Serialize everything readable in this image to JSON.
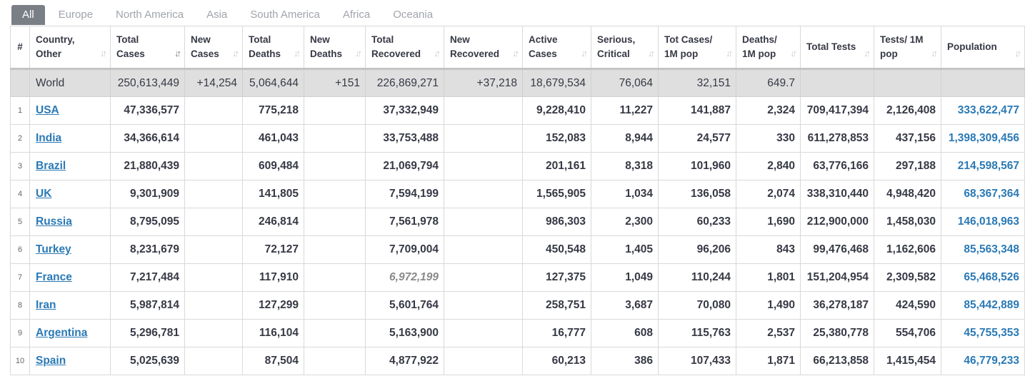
{
  "tabs": [
    "All",
    "Europe",
    "North America",
    "Asia",
    "South America",
    "Africa",
    "Oceania"
  ],
  "active_tab": "All",
  "colors": {
    "link": "#2a79b5",
    "world_row_bg": "#dfdfdf",
    "active_tab_bg": "#7a7f86"
  },
  "headers": [
    "#",
    "Country, Other",
    "Total Cases",
    "New Cases",
    "Total Deaths",
    "New Deaths",
    "Total Recovered",
    "New Recovered",
    "Active Cases",
    "Serious, Critical",
    "Tot Cases/ 1M pop",
    "Deaths/ 1M pop",
    "Total Tests",
    "Tests/ 1M pop",
    "Population"
  ],
  "sort_icon": "sort-arrows-icon",
  "world": [
    "",
    "World",
    "250,613,449",
    "+14,254",
    "5,064,644",
    "+151",
    "226,869,271",
    "+37,218",
    "18,679,534",
    "76,064",
    "32,151",
    "649.7",
    "",
    "",
    ""
  ],
  "rows": [
    [
      "1",
      "USA",
      "47,336,577",
      "",
      "775,218",
      "",
      "37,332,949",
      "",
      "9,228,410",
      "11,227",
      "141,887",
      "2,324",
      "709,417,394",
      "2,126,408",
      "333,622,477"
    ],
    [
      "2",
      "India",
      "34,366,614",
      "",
      "461,043",
      "",
      "33,753,488",
      "",
      "152,083",
      "8,944",
      "24,577",
      "330",
      "611,278,853",
      "437,156",
      "1,398,309,456"
    ],
    [
      "3",
      "Brazil",
      "21,880,439",
      "",
      "609,484",
      "",
      "21,069,794",
      "",
      "201,161",
      "8,318",
      "101,960",
      "2,840",
      "63,776,166",
      "297,188",
      "214,598,567"
    ],
    [
      "4",
      "UK",
      "9,301,909",
      "",
      "141,805",
      "",
      "7,594,199",
      "",
      "1,565,905",
      "1,034",
      "136,058",
      "2,074",
      "338,310,440",
      "4,948,420",
      "68,367,364"
    ],
    [
      "5",
      "Russia",
      "8,795,095",
      "",
      "246,814",
      "",
      "7,561,978",
      "",
      "986,303",
      "2,300",
      "60,233",
      "1,690",
      "212,900,000",
      "1,458,030",
      "146,018,963"
    ],
    [
      "6",
      "Turkey",
      "8,231,679",
      "",
      "72,127",
      "",
      "7,709,004",
      "",
      "450,548",
      "1,405",
      "96,206",
      "843",
      "99,476,468",
      "1,162,606",
      "85,563,348"
    ],
    [
      "7",
      "France",
      "7,217,484",
      "",
      "117,910",
      "",
      "6,972,199",
      "",
      "127,375",
      "1,049",
      "110,244",
      "1,801",
      "151,204,954",
      "2,309,582",
      "65,468,526"
    ],
    [
      "8",
      "Iran",
      "5,987,814",
      "",
      "127,299",
      "",
      "5,601,764",
      "",
      "258,751",
      "3,687",
      "70,080",
      "1,490",
      "36,278,187",
      "424,590",
      "85,442,889"
    ],
    [
      "9",
      "Argentina",
      "5,296,781",
      "",
      "116,104",
      "",
      "5,163,900",
      "",
      "16,777",
      "608",
      "115,763",
      "2,537",
      "25,380,778",
      "554,706",
      "45,755,353"
    ],
    [
      "10",
      "Spain",
      "5,025,639",
      "",
      "87,504",
      "",
      "4,877,922",
      "",
      "60,213",
      "386",
      "107,433",
      "1,871",
      "66,213,858",
      "1,415,454",
      "46,779,233"
    ]
  ]
}
